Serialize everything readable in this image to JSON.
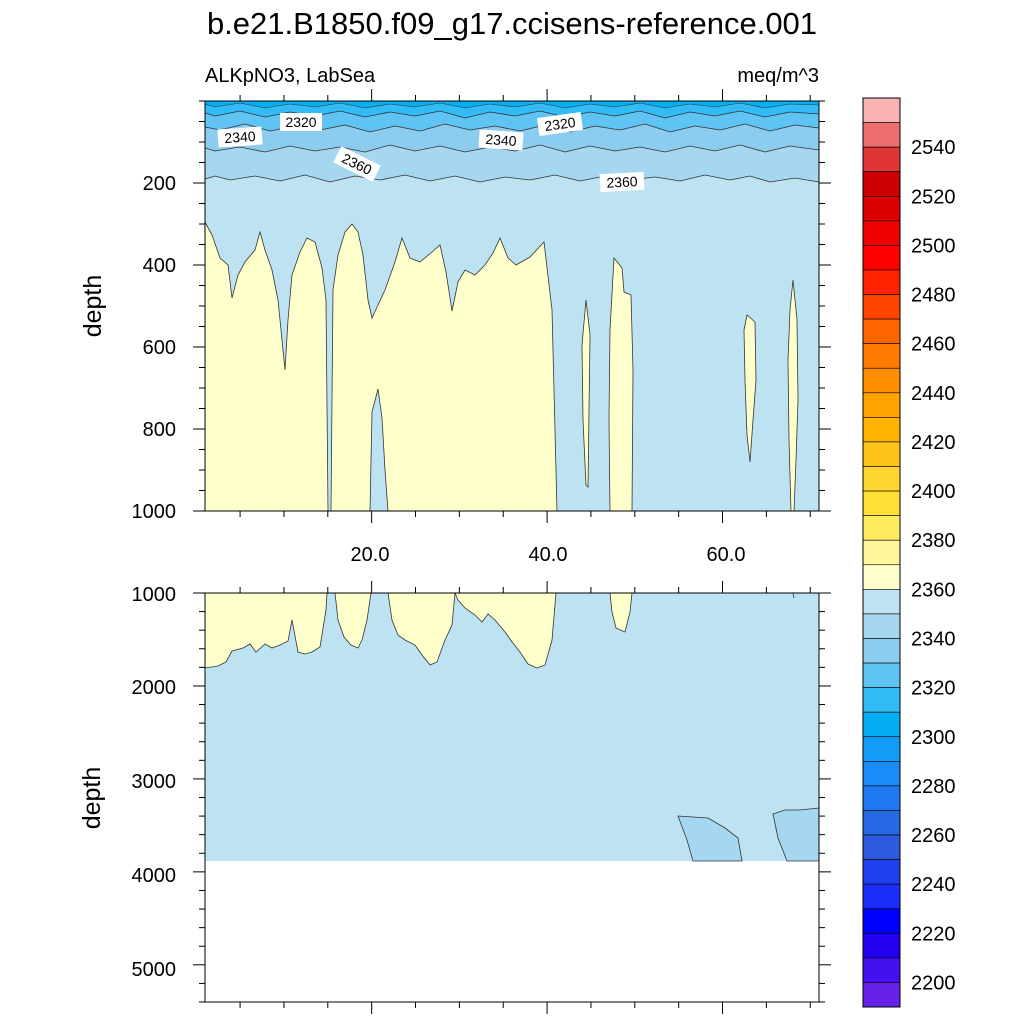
{
  "chart_data": {
    "type": "contour",
    "title": "b.e21.B1850.f09_g17.ccisens-reference.001",
    "left_subtitle": "ALKpNO3, LabSea",
    "right_subtitle": "meq/m^3",
    "ylabel": "depth",
    "x_ticks": [
      "20.0",
      "40.0",
      "60.0"
    ],
    "x_tick_values": [
      20,
      40,
      60
    ],
    "xlim": [
      1,
      71
    ],
    "panels": [
      {
        "name": "upper",
        "ylim": [
          0,
          1000
        ],
        "y_ticks": [
          "200",
          "400",
          "600",
          "800",
          "1000"
        ],
        "y_tick_values": [
          200,
          400,
          600,
          800,
          1000
        ],
        "contour_labels": [
          "2320",
          "2340",
          "2320",
          "2340",
          "2360",
          "2360"
        ]
      },
      {
        "name": "lower",
        "ylim": [
          1000,
          5400
        ],
        "y_ticks": [
          "1000",
          "2000",
          "3000",
          "4000",
          "5000"
        ],
        "y_tick_values": [
          1000,
          2000,
          3000,
          4000,
          5000
        ],
        "ocean_bottom_depth": 3870
      }
    ],
    "colorbar": {
      "labels": [
        "2540",
        "2520",
        "2500",
        "2480",
        "2460",
        "2440",
        "2420",
        "2400",
        "2380",
        "2360",
        "2340",
        "2320",
        "2300",
        "2280",
        "2260",
        "2240",
        "2220",
        "2200"
      ],
      "label_values": [
        2540,
        2520,
        2500,
        2480,
        2460,
        2440,
        2420,
        2400,
        2380,
        2360,
        2340,
        2320,
        2300,
        2280,
        2260,
        2240,
        2220,
        2200
      ],
      "levels_min": 2190,
      "levels_max": 2560,
      "step": 10,
      "colors_top_to_bottom": [
        "#f9b3b3",
        "#ec6e6e",
        "#df3434",
        "#cc0000",
        "#dd0000",
        "#ec0000",
        "#ff0000",
        "#ff2200",
        "#ff4400",
        "#ff6600",
        "#ff7a00",
        "#ff8e00",
        "#ffa300",
        "#ffb300",
        "#ffc41a",
        "#ffd530",
        "#ffe135",
        "#ffeb60",
        "#fff59a",
        "#ffffcc",
        "#bde3f3",
        "#a5d7f1",
        "#8ccdef",
        "#5fc3f4",
        "#33bbf5",
        "#03aff2",
        "#139cf7",
        "#1a8cfa",
        "#2079f2",
        "#2768e4",
        "#2d5ade",
        "#2040ee",
        "#1a2cf8",
        "#0000ff",
        "#2200f0",
        "#4410f0",
        "#6620e8"
      ]
    },
    "fill_colors": {
      "surface_1": "#33bbf5",
      "surface_2": "#5fc3f4",
      "mid_blue": "#8ccdef",
      "light_blue": "#a5d7f1",
      "pale_blue": "#bde3f3",
      "pale_yellow": "#ffffcc"
    }
  }
}
